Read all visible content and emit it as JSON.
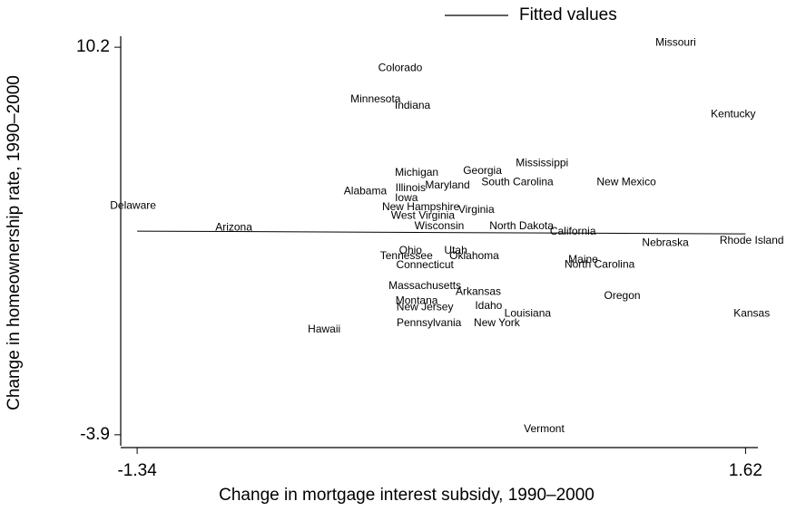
{
  "chart_data": {
    "type": "scatter",
    "x_label": "Change in mortgage interest subsidy, 1990–2000",
    "y_label": "Change in homeownership rate, 1990–2000",
    "xlim": [
      -1.42,
      1.68
    ],
    "ylim": [
      -4.3,
      10.6
    ],
    "xticks": [
      -1.34,
      1.62
    ],
    "yticks": [
      -3.9,
      10.2
    ],
    "legend": "top",
    "points": {
      "labels": [
        "Missouri",
        "Colorado",
        "Minnesota",
        "Indiana",
        "Kentucky",
        "Mississippi",
        "Michigan",
        "Georgia",
        "Maryland",
        "South Carolina",
        "New Mexico",
        "Alabama",
        "Illinois",
        "Iowa",
        "Delaware",
        "New Hampshire",
        "Virginia",
        "West Virginia",
        "Arizona",
        "Wisconsin",
        "North Dakota",
        "California",
        "Nebraska",
        "Rhode Island",
        "Ohio",
        "Utah",
        "Tennessee",
        "Oklahoma",
        "Connecticut",
        "Maine",
        "North Carolina",
        "Massachusetts",
        "Arkansas",
        "Oregon",
        "Montana",
        "Idaho",
        "New Jersey",
        "Louisiana",
        "Kansas",
        "Pennsylvania",
        "New York",
        "Hawaii",
        "Vermont"
      ],
      "x": [
        1.28,
        -0.06,
        -0.18,
        0.0,
        1.56,
        0.63,
        0.02,
        0.34,
        0.17,
        0.51,
        1.04,
        -0.23,
        -0.01,
        -0.03,
        -1.36,
        0.04,
        0.31,
        0.05,
        -0.87,
        0.13,
        0.53,
        0.78,
        1.23,
        1.65,
        -0.01,
        0.21,
        -0.03,
        0.3,
        0.06,
        0.83,
        0.91,
        0.06,
        0.32,
        1.02,
        0.02,
        0.37,
        0.06,
        0.56,
        1.65,
        0.08,
        0.41,
        -0.43,
        0.64
      ],
      "y": [
        10.36,
        9.44,
        8.29,
        8.06,
        7.76,
        5.98,
        5.62,
        5.69,
        5.16,
        5.29,
        5.29,
        4.96,
        5.06,
        4.7,
        4.43,
        4.37,
        4.27,
        4.07,
        3.64,
        3.68,
        3.68,
        3.48,
        3.08,
        3.15,
        2.79,
        2.79,
        2.59,
        2.59,
        2.26,
        2.46,
        2.29,
        1.5,
        1.3,
        1.14,
        0.97,
        0.78,
        0.74,
        0.51,
        0.51,
        0.15,
        0.15,
        -0.08,
        -3.7
      ]
    },
    "series": [
      {
        "name": "Fitted values",
        "type": "line",
        "color": "#000000",
        "x": [
          -1.34,
          1.62
        ],
        "values": [
          3.51,
          3.41
        ]
      }
    ]
  }
}
